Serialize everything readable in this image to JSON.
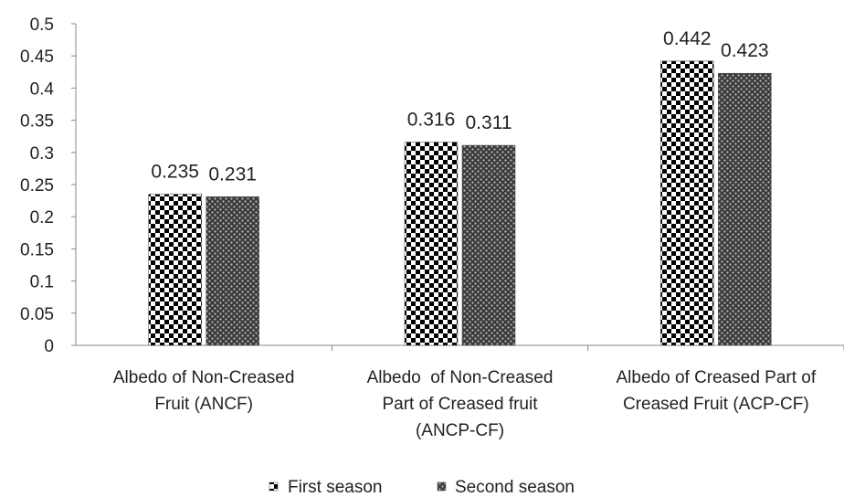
{
  "chart_data": {
    "type": "bar",
    "categories": [
      [
        "Albedo of Non-Creased",
        "Fruit (ANCF)"
      ],
      [
        "Albedo  of Non-Creased",
        "Part of Creased fruit",
        "(ANCP-CF)"
      ],
      [
        "Albedo of Creased Part of",
        "Creased Fruit (ACP-CF)"
      ]
    ],
    "series": [
      {
        "name": "First season",
        "values": [
          0.235,
          0.316,
          0.442
        ],
        "labels": [
          "0.235",
          "0.316",
          "0.442"
        ]
      },
      {
        "name": "Second season",
        "values": [
          0.231,
          0.311,
          0.423
        ],
        "labels": [
          "0.231",
          "0.311",
          "0.423"
        ]
      }
    ],
    "ylim": [
      0,
      0.5
    ],
    "yticks": [
      "0",
      "0.05",
      "0.1",
      "0.15",
      "0.2",
      "0.25",
      "0.3",
      "0.35",
      "0.4",
      "0.45",
      "0.5"
    ],
    "grid": false,
    "legend_position": "bottom"
  }
}
